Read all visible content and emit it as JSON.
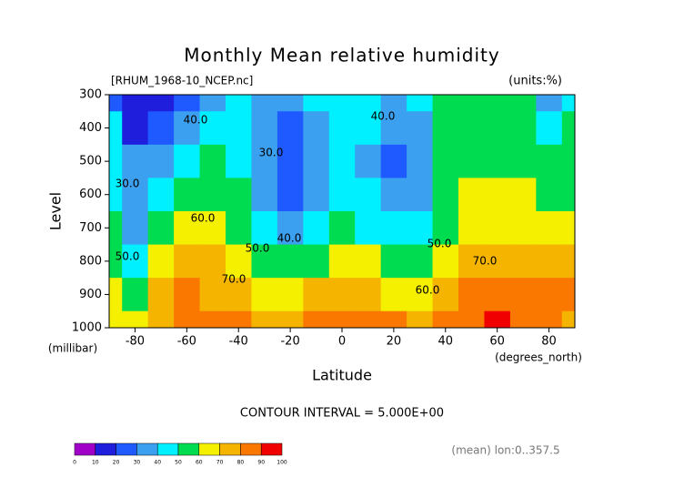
{
  "chart_data": {
    "type": "contour",
    "title": "Monthly Mean relative humidity",
    "subtitle": "[RHUM_1968-10_NCEP.nc]",
    "units": "(units:%)",
    "ylabel": "Level",
    "yunit": "(millibar)",
    "xlabel": "Latitude",
    "xunit": "(degrees_north)",
    "interval_note": "CONTOUR INTERVAL = 5.000E+00",
    "mean_note": "(mean) lon:0..357.5",
    "xlim": [
      -90,
      90
    ],
    "ylim": [
      1000,
      300
    ],
    "xticks": [
      -80,
      -60,
      -40,
      -20,
      0,
      20,
      40,
      60,
      80
    ],
    "yticks": [
      300,
      400,
      500,
      600,
      700,
      800,
      900,
      1000
    ],
    "x": [
      -90,
      -80,
      -70,
      -60,
      -50,
      -40,
      -30,
      -20,
      -10,
      0,
      10,
      20,
      30,
      40,
      50,
      60,
      70,
      80,
      90
    ],
    "y": [
      300,
      400,
      500,
      600,
      700,
      800,
      900,
      1000
    ],
    "z": [
      [
        25,
        10,
        15,
        25,
        35,
        45,
        35,
        30,
        40,
        45,
        42,
        38,
        40,
        50,
        55,
        52,
        50,
        35,
        40
      ],
      [
        40,
        15,
        25,
        35,
        45,
        40,
        32,
        28,
        35,
        45,
        40,
        30,
        35,
        50,
        55,
        55,
        52,
        45,
        50
      ],
      [
        45,
        30,
        30,
        45,
        50,
        45,
        30,
        25,
        35,
        45,
        38,
        28,
        35,
        50,
        55,
        55,
        55,
        50,
        55
      ],
      [
        45,
        35,
        45,
        55,
        55,
        50,
        35,
        28,
        38,
        48,
        40,
        32,
        38,
        52,
        60,
        62,
        60,
        58,
        58
      ],
      [
        50,
        35,
        55,
        65,
        60,
        55,
        45,
        38,
        45,
        52,
        48,
        42,
        45,
        55,
        68,
        68,
        65,
        65,
        65
      ],
      [
        55,
        45,
        65,
        72,
        70,
        65,
        58,
        55,
        58,
        62,
        60,
        55,
        55,
        65,
        75,
        76,
        75,
        75,
        75
      ],
      [
        60,
        55,
        70,
        80,
        78,
        72,
        68,
        67,
        70,
        72,
        70,
        68,
        68,
        72,
        80,
        82,
        82,
        80,
        85
      ],
      [
        60,
        60,
        75,
        85,
        85,
        80,
        76,
        78,
        80,
        82,
        80,
        80,
        78,
        80,
        88,
        90,
        85,
        82,
        78
      ]
    ],
    "levels": [
      0,
      10,
      20,
      30,
      40,
      50,
      60,
      70,
      80,
      90,
      100
    ],
    "colors": [
      "#a000c8",
      "#1e1edc",
      "#1e5aff",
      "#3ca0f0",
      "#00f0ff",
      "#00dc50",
      "#f5f000",
      "#f5b400",
      "#fa7800",
      "#f00000"
    ],
    "contour_labels": [
      "40.0",
      "30.0",
      "40.0",
      "30.0",
      "50.0",
      "40.0",
      "50.0",
      "50.0",
      "60.0",
      "70.0",
      "60.0",
      "70.0"
    ]
  }
}
